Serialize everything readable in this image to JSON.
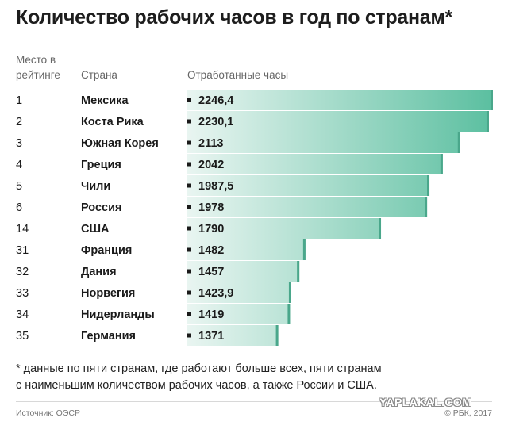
{
  "title": "Количество рабочих часов в год по странам*",
  "headers": {
    "rank": "Место в рейтинге",
    "country": "Страна",
    "hours": "Отработанные часы"
  },
  "chart_data": {
    "type": "bar",
    "orientation": "horizontal",
    "title": "Количество рабочих часов в год по странам*",
    "ranks": [
      "1",
      "2",
      "3",
      "4",
      "5",
      "6",
      "14",
      "31",
      "32",
      "33",
      "34",
      "35"
    ],
    "categories": [
      "Мексика",
      "Коста Рика",
      "Южная Корея",
      "Греция",
      "Чили",
      "Россия",
      "США",
      "Франция",
      "Дания",
      "Норвегия",
      "Нидерланды",
      "Германия"
    ],
    "value_labels": [
      "2246,4",
      "2230,1",
      "2113",
      "2042",
      "1987,5",
      "1978",
      "1790",
      "1482",
      "1457",
      "1423,9",
      "1419",
      "1371"
    ],
    "values": [
      2246.4,
      2230.1,
      2113,
      2042,
      1987.5,
      1978,
      1790,
      1482,
      1457,
      1423.9,
      1419,
      1371
    ],
    "colors": {
      "bar_start": "#e9f5f1",
      "bar_end": "#5bbfa0",
      "bar_edge": "#4aa78b",
      "marker": "#1a1a1a"
    }
  },
  "note": {
    "line1": "* данные по пяти странам, где работают больше всех, пяти странам",
    "line2": "с наименьшим количеством рабочих часов, а также России и США."
  },
  "source": "Источник: ОЭСР",
  "watermark": "YAPLAKAL.COM",
  "copyright": "© РБК, 2017"
}
